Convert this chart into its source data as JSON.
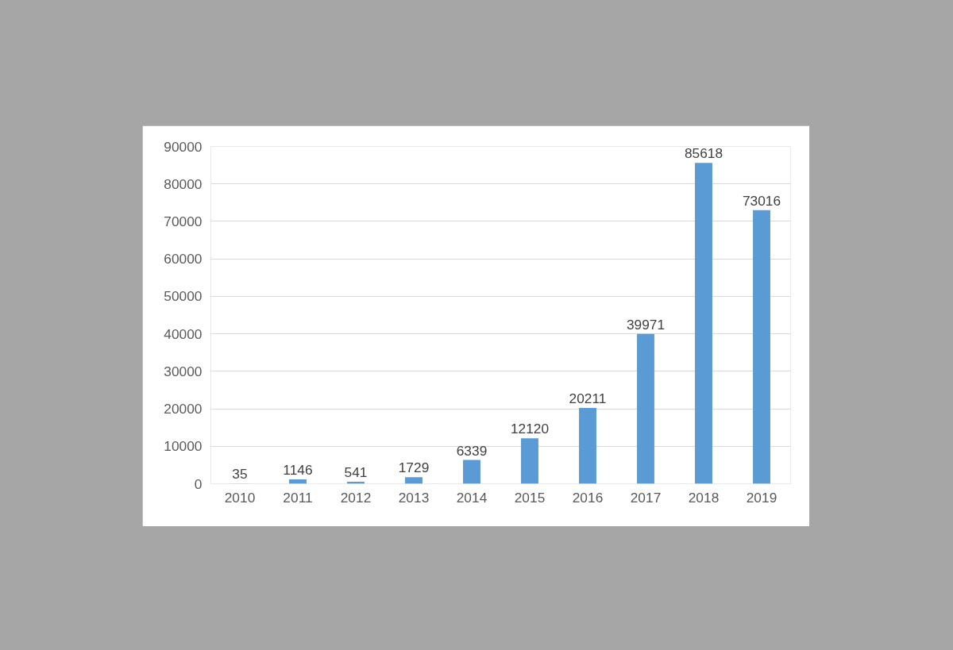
{
  "chart_data": {
    "type": "bar",
    "categories": [
      "2010",
      "2011",
      "2012",
      "2013",
      "2014",
      "2015",
      "2016",
      "2017",
      "2018",
      "2019"
    ],
    "values": [
      35,
      1146,
      541,
      1729,
      6339,
      12120,
      20211,
      39971,
      85618,
      73016
    ],
    "color": "#5b9bd5",
    "ylim": [
      0,
      90000
    ],
    "yticks": [
      0,
      10000,
      20000,
      30000,
      40000,
      50000,
      60000,
      70000,
      80000,
      90000
    ],
    "grid": "y",
    "data_labels": true
  }
}
